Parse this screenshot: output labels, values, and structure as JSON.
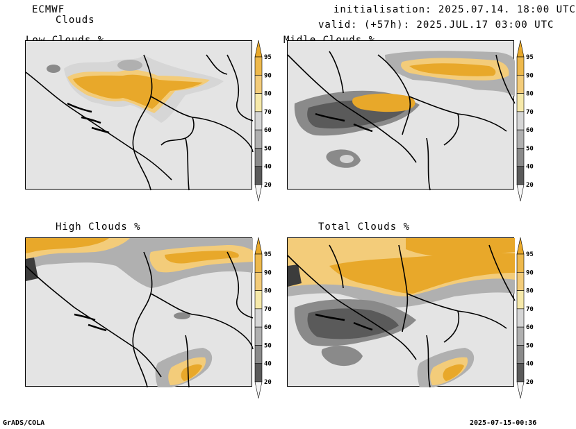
{
  "header": {
    "model": "ECMWF",
    "product": "Clouds",
    "init": "initialisation: 2025.07.14. 18:00 UTC",
    "valid": "valid: (+57h): 2025.JUL.17 03:00 UTC"
  },
  "panels": [
    {
      "title": "Low Clouds %"
    },
    {
      "title": "Midle Clouds %"
    },
    {
      "title": "High Clouds %"
    },
    {
      "title": "Total Clouds %"
    }
  ],
  "colorbar": {
    "levels": [
      "95",
      "90",
      "80",
      "70",
      "60",
      "50",
      "40",
      "20"
    ],
    "colors": [
      "#e8a82a",
      "#eeb94c",
      "#f3cc7a",
      "#f6e9aa",
      "#d6d6d6",
      "#b0b0b0",
      "#8a8a8a",
      "#5a5a5a",
      "#3c3c3c"
    ]
  },
  "footer": {
    "left": "GrADS/COLA",
    "right": "2025-07-15-00:36"
  }
}
